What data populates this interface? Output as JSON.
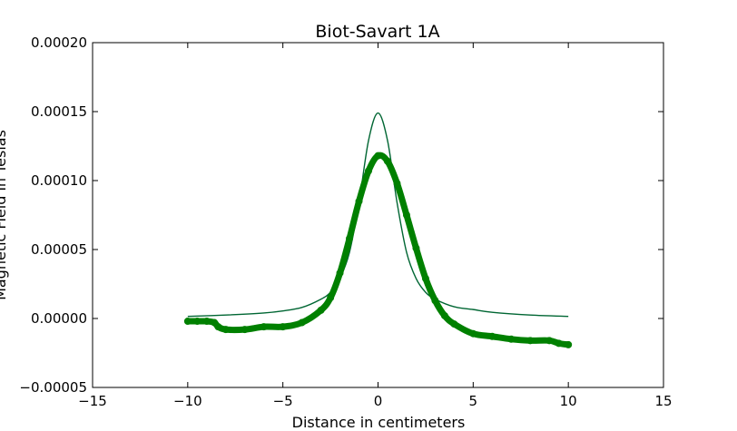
{
  "chart_data": {
    "type": "line",
    "title": "Biot-Savart 1A",
    "xlabel": "Distance in centimeters",
    "ylabel": "Magnetic Field in Teslas",
    "xlim": [
      -15,
      15
    ],
    "ylim": [
      -5e-05,
      0.0002
    ],
    "xticks": [
      -15,
      -10,
      -5,
      0,
      5,
      10,
      15
    ],
    "xtick_labels": [
      "−15",
      "−10",
      "−5",
      "0",
      "5",
      "10",
      "15"
    ],
    "yticks": [
      -5e-05,
      0,
      5e-05,
      0.0001,
      0.00015,
      0.0002
    ],
    "ytick_labels": [
      "−0.00005",
      "0.00000",
      "0.00005",
      "0.00010",
      "0.00015",
      "0.00020"
    ],
    "grid": false,
    "legend": "none",
    "colors": {
      "theory": "#006633",
      "measured": "#008000"
    },
    "series": [
      {
        "style": "thin-line",
        "x": [
          -10,
          -8,
          -6,
          -5,
          -4,
          -3,
          -2.5,
          -2,
          -1.5,
          -1,
          -0.5,
          0,
          0.5,
          1,
          1.5,
          2,
          2.5,
          3,
          4,
          5,
          6,
          8,
          10
        ],
        "y": [
          1.5e-06,
          2.5e-06,
          4e-06,
          5.5e-06,
          8e-06,
          1.4e-05,
          1.9e-05,
          2.9e-05,
          4.8e-05,
          8.4e-05,
          0.000129,
          0.000149,
          0.000129,
          8.4e-05,
          4.8e-05,
          2.9e-05,
          1.9e-05,
          1.4e-05,
          8.5e-06,
          6.5e-06,
          4.5e-06,
          2.5e-06,
          1.5e-06
        ]
      },
      {
        "style": "thick-markers",
        "x": [
          -10,
          -9.5,
          -9,
          -8.6,
          -8.4,
          -8,
          -7,
          -6,
          -5,
          -4,
          -3,
          -2.5,
          -2,
          -1.5,
          -1,
          -0.5,
          0,
          0.5,
          1,
          1.5,
          2,
          2.5,
          3,
          3.5,
          4,
          5,
          6,
          7,
          8,
          9,
          9.5,
          10
        ],
        "y": [
          -2e-06,
          -2e-06,
          -2e-06,
          -3e-06,
          -6e-06,
          -8e-06,
          -8e-06,
          -6e-06,
          -6e-06,
          -3e-06,
          6e-06,
          1.5e-05,
          3.3e-05,
          5.8e-05,
          8.5e-05,
          0.000107,
          0.000118,
          0.000114,
          9.8e-05,
          7.5e-05,
          5.1e-05,
          2.9e-05,
          1.3e-05,
          2e-06,
          -4e-06,
          -1.1e-05,
          -1.3e-05,
          -1.5e-05,
          -1.6e-05,
          -1.6e-05,
          -1.8e-05,
          -1.9e-05
        ]
      }
    ]
  }
}
